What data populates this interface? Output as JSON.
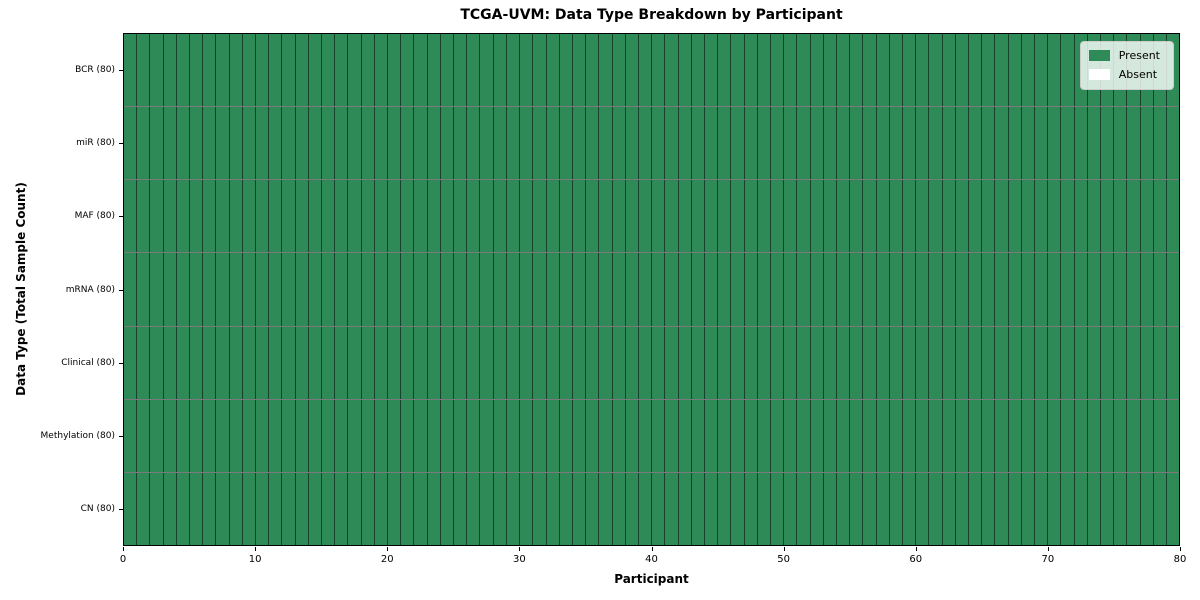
{
  "chart_data": {
    "type": "heatmap",
    "title": "TCGA-UVM: Data Type Breakdown by Participant",
    "xlabel": "Participant",
    "ylabel": "Data Type (Total Sample Count)",
    "x_range": [
      0,
      80
    ],
    "x_ticks": [
      0,
      10,
      20,
      30,
      40,
      50,
      60,
      70,
      80
    ],
    "n_participants": 80,
    "rows": [
      {
        "label": "BCR (80)",
        "present_count": 80
      },
      {
        "label": "miR (80)",
        "present_count": 80
      },
      {
        "label": "MAF (80)",
        "present_count": 80
      },
      {
        "label": "mRNA (80)",
        "present_count": 80
      },
      {
        "label": "Clinical (80)",
        "present_count": 80
      },
      {
        "label": "Methylation (80)",
        "present_count": 80
      },
      {
        "label": "CN (80)",
        "present_count": 80
      }
    ],
    "legend": {
      "position": "upper right",
      "entries": [
        {
          "label": "Present",
          "color": "#2e8b57"
        },
        {
          "label": "Absent",
          "color": "#ffffff"
        }
      ]
    },
    "colors": {
      "present": "#2e8b57",
      "absent": "#ffffff",
      "cell_edge": "rgba(0,0,0,0.52)",
      "axis": "#000000"
    },
    "grid": "per-cell borders, all cells present"
  }
}
